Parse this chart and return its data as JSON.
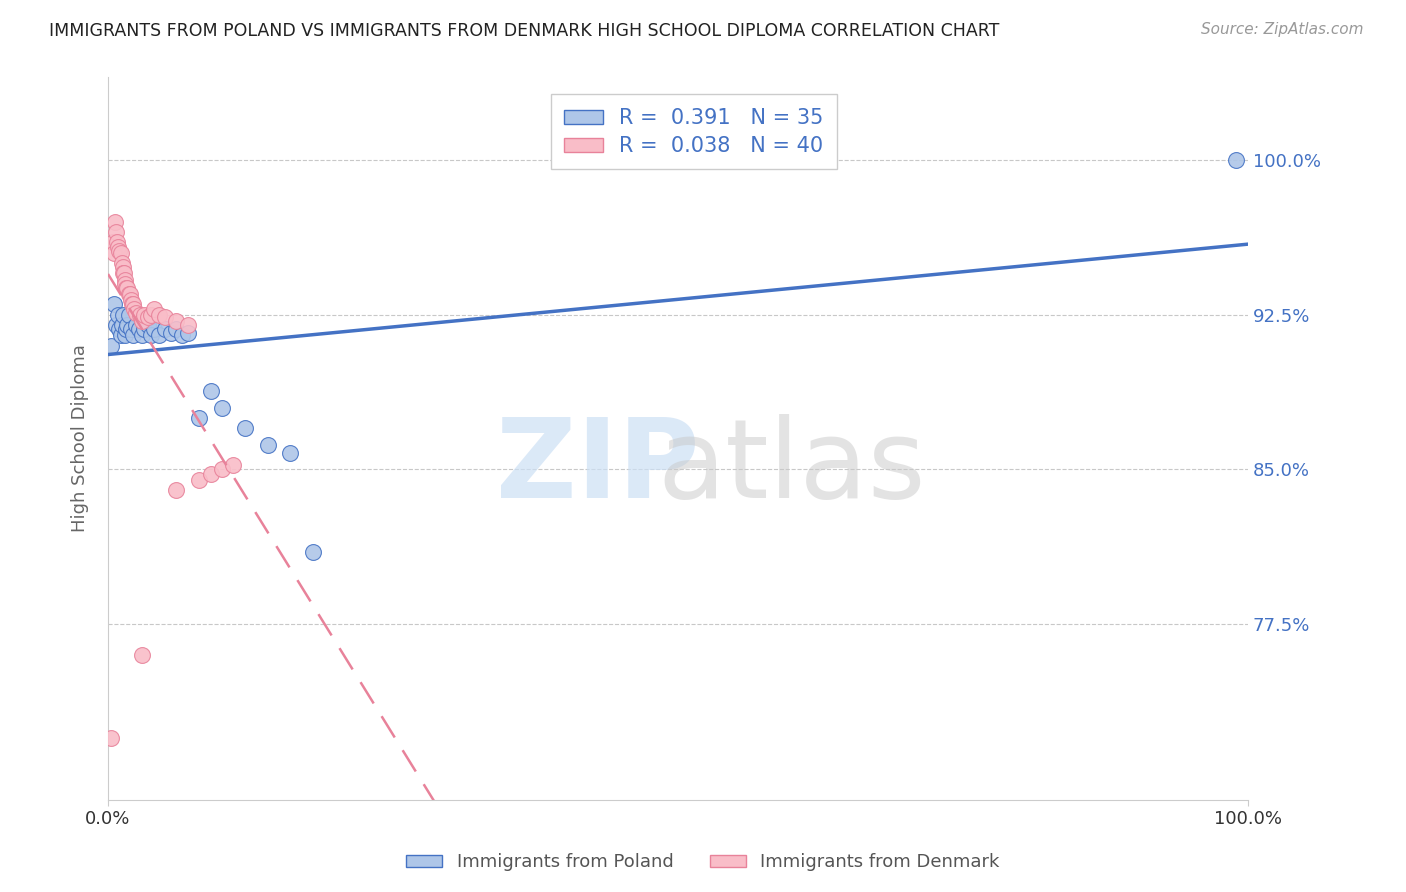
{
  "title": "IMMIGRANTS FROM POLAND VS IMMIGRANTS FROM DENMARK HIGH SCHOOL DIPLOMA CORRELATION CHART",
  "source": "Source: ZipAtlas.com",
  "ylabel": "High School Diploma",
  "y_tick_values": [
    0.775,
    0.85,
    0.925,
    1.0
  ],
  "xlim": [
    0.0,
    1.0
  ],
  "ylim": [
    0.69,
    1.04
  ],
  "background_color": "#ffffff",
  "grid_color": "#c8c8c8",
  "right_label_color": "#4472c4",
  "poland_scatter_color": "#aec6e8",
  "denmark_scatter_color": "#f9bdc8",
  "poland_line_color": "#4472c4",
  "denmark_line_color": "#e8829a",
  "poland_R": 0.391,
  "poland_N": 35,
  "denmark_R": 0.038,
  "denmark_N": 40,
  "poland_x": [
    0.003,
    0.005,
    0.007,
    0.009,
    0.01,
    0.011,
    0.012,
    0.013,
    0.015,
    0.016,
    0.017,
    0.018,
    0.02,
    0.022,
    0.025,
    0.027,
    0.03,
    0.032,
    0.035,
    0.038,
    0.04,
    0.045,
    0.05,
    0.055,
    0.06,
    0.065,
    0.07,
    0.08,
    0.09,
    0.1,
    0.12,
    0.14,
    0.16,
    0.18,
    0.99
  ],
  "poland_y": [
    0.91,
    0.93,
    0.92,
    0.925,
    0.918,
    0.915,
    0.92,
    0.925,
    0.915,
    0.918,
    0.92,
    0.925,
    0.918,
    0.915,
    0.92,
    0.918,
    0.915,
    0.918,
    0.92,
    0.915,
    0.918,
    0.915,
    0.918,
    0.916,
    0.918,
    0.915,
    0.916,
    0.875,
    0.888,
    0.88,
    0.87,
    0.862,
    0.858,
    0.81,
    1.0
  ],
  "denmark_x": [
    0.003,
    0.004,
    0.005,
    0.006,
    0.007,
    0.008,
    0.009,
    0.01,
    0.011,
    0.012,
    0.013,
    0.013,
    0.014,
    0.015,
    0.015,
    0.016,
    0.017,
    0.018,
    0.019,
    0.02,
    0.021,
    0.022,
    0.023,
    0.025,
    0.028,
    0.03,
    0.032,
    0.035,
    0.038,
    0.04,
    0.045,
    0.05,
    0.06,
    0.07,
    0.08,
    0.09,
    0.1,
    0.11,
    0.03,
    0.06
  ],
  "denmark_y": [
    0.72,
    0.96,
    0.955,
    0.97,
    0.965,
    0.96,
    0.958,
    0.956,
    0.955,
    0.95,
    0.948,
    0.945,
    0.945,
    0.942,
    0.94,
    0.938,
    0.938,
    0.935,
    0.935,
    0.932,
    0.93,
    0.93,
    0.928,
    0.926,
    0.925,
    0.922,
    0.925,
    0.924,
    0.925,
    0.928,
    0.925,
    0.924,
    0.922,
    0.92,
    0.845,
    0.848,
    0.85,
    0.852,
    0.76,
    0.84
  ]
}
